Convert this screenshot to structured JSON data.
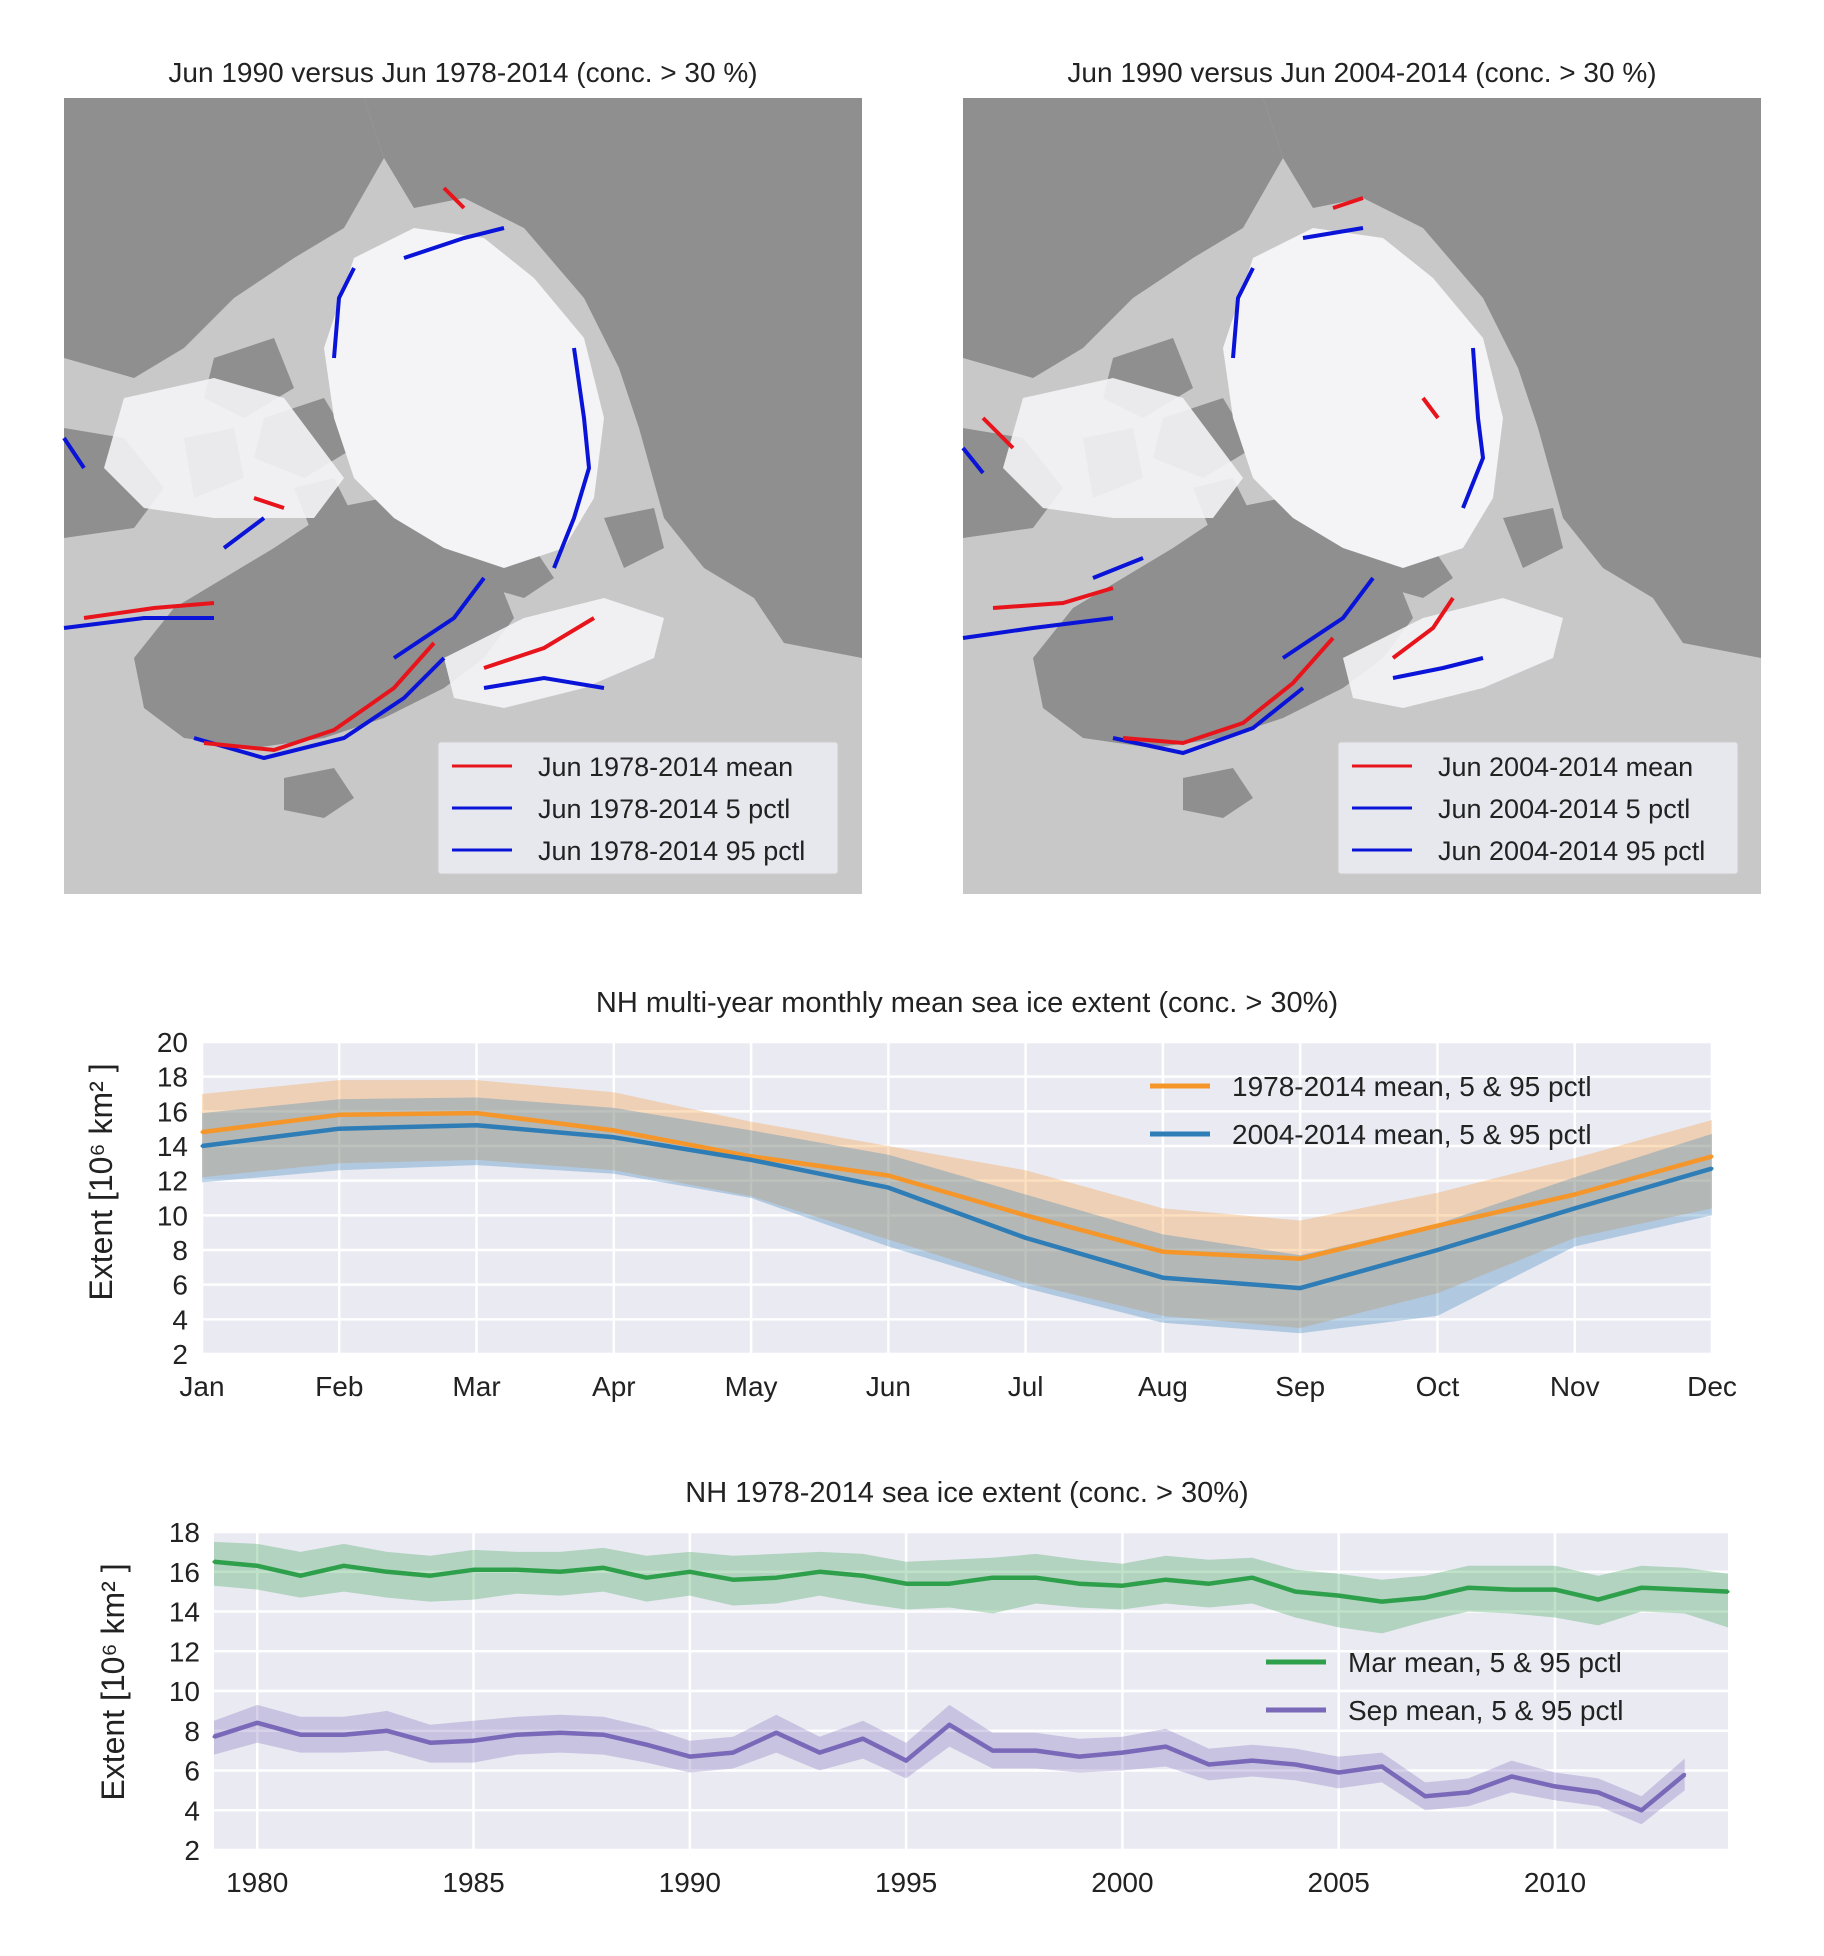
{
  "maps": [
    {
      "title": "Jun 1990 versus Jun 1978-2014 (conc. > 30 %)",
      "legend": [
        {
          "label": "Jun 1978-2014 mean",
          "color": "#e8141c"
        },
        {
          "label": "Jun 1978-2014 5 pctl",
          "color": "#0a14d8"
        },
        {
          "label": "Jun 1978-2014 95 pctl",
          "color": "#0a14d8"
        }
      ]
    },
    {
      "title": "Jun 1990 versus Jun 2004-2014 (conc. > 30 %)",
      "legend": [
        {
          "label": "Jun 2004-2014 mean",
          "color": "#e8141c"
        },
        {
          "label": "Jun 2004-2014 5 pctl",
          "color": "#0a14d8"
        },
        {
          "label": "Jun 2004-2014 95 pctl",
          "color": "#0a14d8"
        }
      ]
    }
  ],
  "map_colors": {
    "land": "#8f8f8f",
    "land_light": "#c8c8c8",
    "ice": "#f4f4f6",
    "ice_edge": "#d2d2d4",
    "coast": "#ffffff"
  },
  "chart_data": [
    {
      "type": "line",
      "title": "NH multi-year monthly mean sea ice extent (conc. > 30%)",
      "xlabel": "",
      "ylabel": "Extent [10⁶  km² ]",
      "categories": [
        "Jan",
        "Feb",
        "Mar",
        "Apr",
        "May",
        "Jun",
        "Jul",
        "Aug",
        "Sep",
        "Oct",
        "Nov",
        "Dec"
      ],
      "ylim": [
        2,
        20
      ],
      "yticks": [
        2,
        4,
        6,
        8,
        10,
        12,
        14,
        16,
        18,
        20
      ],
      "grid": true,
      "legend_position": "top-right",
      "series": [
        {
          "name": "1978-2014 mean, 5 & 95 pctl",
          "color": "#f5962a",
          "values": [
            14.8,
            15.8,
            15.9,
            14.9,
            13.4,
            12.3,
            10.0,
            7.9,
            7.5,
            9.4,
            11.2,
            13.4
          ],
          "p5": [
            12.2,
            13.0,
            13.2,
            12.6,
            11.1,
            8.6,
            6.1,
            4.2,
            3.5,
            5.5,
            8.7,
            10.4
          ],
          "p95": [
            17.0,
            17.8,
            17.8,
            17.1,
            15.4,
            14.0,
            12.6,
            10.4,
            9.7,
            11.3,
            13.3,
            15.5
          ]
        },
        {
          "name": "2004-2014 mean, 5 & 95 pctl",
          "color": "#2f7db6",
          "values": [
            14.0,
            15.0,
            15.2,
            14.5,
            13.2,
            11.6,
            8.7,
            6.4,
            5.8,
            8.0,
            10.4,
            12.7
          ],
          "p5": [
            11.9,
            12.6,
            12.9,
            12.4,
            11.0,
            8.2,
            5.8,
            3.8,
            3.2,
            4.2,
            8.2,
            10.0
          ],
          "p95": [
            15.9,
            16.7,
            16.8,
            16.2,
            14.9,
            13.5,
            11.2,
            8.9,
            7.7,
            9.5,
            12.2,
            14.7
          ]
        }
      ]
    },
    {
      "type": "line",
      "title": "NH 1978-2014 sea ice extent (conc. > 30%)",
      "xlabel": "",
      "ylabel": "Extent [10⁶  km² ]",
      "xlim": [
        1979,
        2014
      ],
      "xticks": [
        1980,
        1985,
        1990,
        1995,
        2000,
        2005,
        2010
      ],
      "ylim": [
        2,
        18
      ],
      "yticks": [
        2,
        4,
        6,
        8,
        10,
        12,
        14,
        16,
        18
      ],
      "grid": true,
      "legend_position": "center-right",
      "series": [
        {
          "name": "Mar mean, 5 & 95 pctl",
          "color": "#2ea04b",
          "x": [
            1979,
            1980,
            1981,
            1982,
            1983,
            1984,
            1985,
            1986,
            1987,
            1988,
            1989,
            1990,
            1991,
            1992,
            1993,
            1994,
            1995,
            1996,
            1997,
            1998,
            1999,
            2000,
            2001,
            2002,
            2003,
            2004,
            2005,
            2006,
            2007,
            2008,
            2009,
            2010,
            2011,
            2012,
            2013,
            2014
          ],
          "values": [
            16.5,
            16.3,
            15.8,
            16.3,
            16.0,
            15.8,
            16.1,
            16.1,
            16.0,
            16.2,
            15.7,
            16.0,
            15.6,
            15.7,
            16.0,
            15.8,
            15.4,
            15.4,
            15.7,
            15.7,
            15.4,
            15.3,
            15.6,
            15.4,
            15.7,
            15.0,
            14.8,
            14.5,
            14.7,
            15.2,
            15.1,
            15.1,
            14.6,
            15.2,
            15.1,
            15.0
          ],
          "p5": [
            15.3,
            15.1,
            14.7,
            15.0,
            14.7,
            14.5,
            14.6,
            14.9,
            14.8,
            15.0,
            14.5,
            14.8,
            14.3,
            14.4,
            14.8,
            14.4,
            14.1,
            14.2,
            13.9,
            14.4,
            14.2,
            14.1,
            14.4,
            14.2,
            14.4,
            13.7,
            13.2,
            12.9,
            13.5,
            14.0,
            13.9,
            13.7,
            13.3,
            14.0,
            13.9,
            13.2
          ],
          "p95": [
            17.5,
            17.4,
            17.0,
            17.4,
            17.0,
            16.8,
            17.1,
            17.0,
            17.0,
            17.2,
            16.8,
            17.0,
            16.8,
            16.9,
            17.0,
            16.9,
            16.5,
            16.6,
            16.7,
            16.9,
            16.6,
            16.4,
            16.8,
            16.6,
            16.7,
            16.1,
            15.9,
            15.6,
            15.8,
            16.3,
            16.3,
            16.3,
            15.8,
            16.3,
            16.2,
            15.9
          ]
        },
        {
          "name": "Sep mean, 5 & 95 pctl",
          "color": "#7a69b8",
          "x": [
            1979,
            1980,
            1981,
            1982,
            1983,
            1984,
            1985,
            1986,
            1987,
            1988,
            1989,
            1990,
            1991,
            1992,
            1993,
            1994,
            1995,
            1996,
            1997,
            1998,
            1999,
            2000,
            2001,
            2002,
            2003,
            2004,
            2005,
            2006,
            2007,
            2008,
            2009,
            2010,
            2011,
            2012,
            2013
          ],
          "values": [
            7.7,
            8.4,
            7.8,
            7.8,
            8.0,
            7.4,
            7.5,
            7.8,
            7.9,
            7.8,
            7.3,
            6.7,
            6.9,
            7.9,
            6.9,
            7.6,
            6.5,
            8.3,
            7.0,
            7.0,
            6.7,
            6.9,
            7.2,
            6.3,
            6.5,
            6.3,
            5.9,
            6.2,
            4.7,
            4.9,
            5.7,
            5.2,
            4.9,
            4.0,
            5.8
          ],
          "p5": [
            6.8,
            7.4,
            6.9,
            6.9,
            7.0,
            6.4,
            6.4,
            6.8,
            6.9,
            6.8,
            6.4,
            5.9,
            6.1,
            6.9,
            6.0,
            6.6,
            5.6,
            7.2,
            6.1,
            6.1,
            5.9,
            6.0,
            6.2,
            5.5,
            5.7,
            5.5,
            5.1,
            5.4,
            4.0,
            4.2,
            4.9,
            4.5,
            4.2,
            3.3,
            5.0
          ],
          "p95": [
            8.5,
            9.3,
            8.7,
            8.7,
            9.0,
            8.3,
            8.5,
            8.7,
            8.8,
            8.7,
            8.2,
            7.5,
            7.7,
            8.8,
            7.7,
            8.5,
            7.4,
            9.3,
            7.9,
            7.9,
            7.6,
            7.7,
            8.1,
            7.1,
            7.3,
            7.1,
            6.7,
            6.9,
            5.4,
            5.6,
            6.5,
            5.9,
            5.6,
            4.7,
            6.6
          ]
        }
      ]
    }
  ]
}
